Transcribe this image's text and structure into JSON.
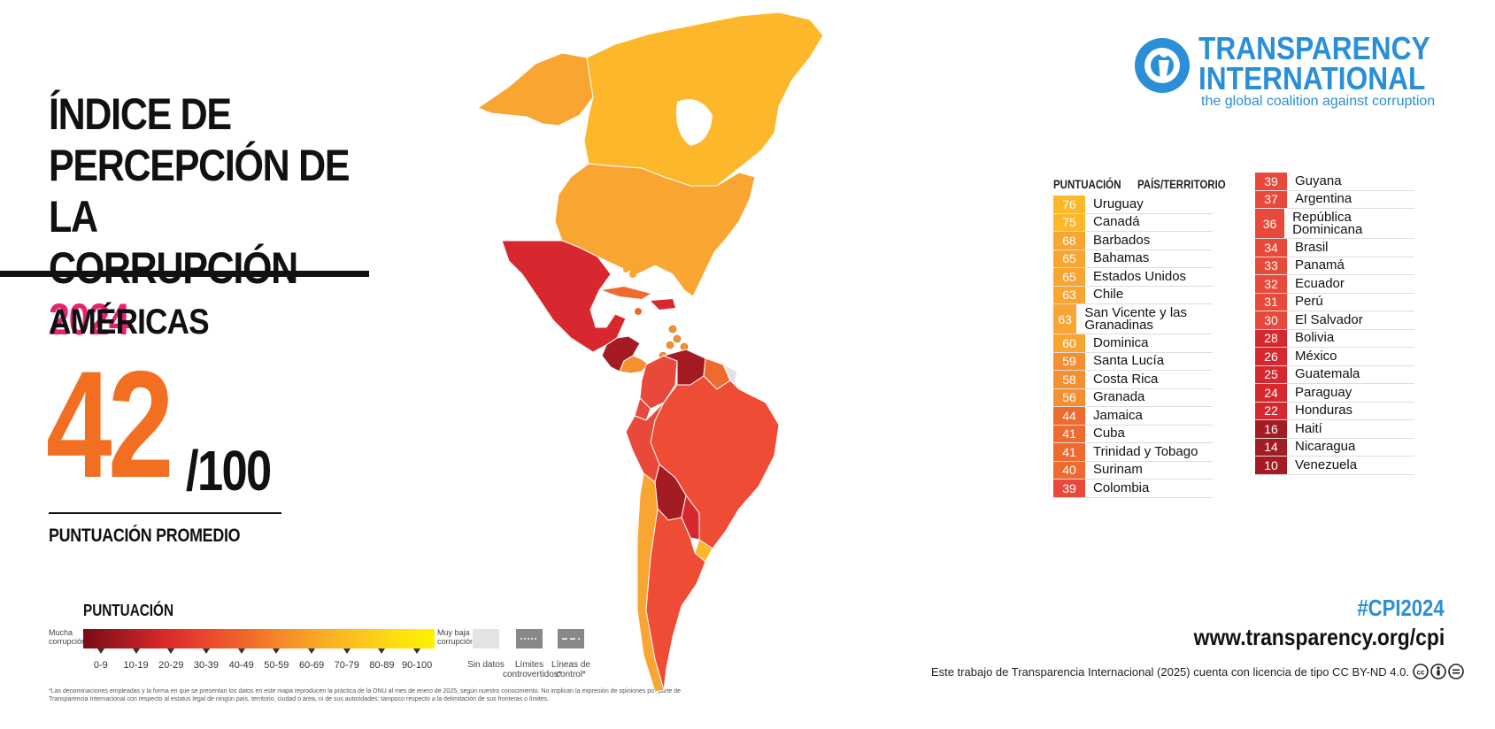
{
  "title": {
    "line1": "ÍNDICE DE",
    "line2": "PERCEPCIÓN DE LA",
    "line3": "CORRUPCIÓN",
    "year": "2024"
  },
  "region": "AMÉRICAS",
  "average": {
    "score": "42",
    "denominator": "/100",
    "label": "PUNTUACIÓN PROMEDIO"
  },
  "legend": {
    "title": "PUNTUACIÓN",
    "low_label": "Mucha corrupción",
    "high_label": "Muy baja corrupción",
    "bins": [
      "0-9",
      "10-19",
      "20-29",
      "30-39",
      "40-49",
      "50-59",
      "60-69",
      "70-79",
      "80-89",
      "90-100"
    ],
    "no_data": "Sin datos",
    "disputed": "Límites controvertidos*",
    "control_lines": "Líneas de control*",
    "colors": [
      "#7b0b13",
      "#a51a20",
      "#d4282a",
      "#e8432d",
      "#ef612b",
      "#f5862a",
      "#f9a825",
      "#fcc21e",
      "#fedd10",
      "#fff200"
    ]
  },
  "footnote": "*Las denominaciones empleadas y la forma en que se presentan los datos en este mapa reproducen la práctica de la ONU al mes de enero de 2025, según nuestro conocimiento. No implican la expresión de opiniones por parte de Transparencia Internacional con respecto al estatus legal de ningún país, territorio, ciudad o área, ni de sus autoridades; tampoco respecto a la delimitación de sus fronteras o límites.",
  "logo": {
    "line1": "TRANSPARENCY",
    "line2": "INTERNATIONAL",
    "tagline": "the global coalition against corruption",
    "color": "#2a8fd6"
  },
  "table": {
    "header_score": "PUNTUACIÓN",
    "header_country": "PAÍS/TERRITORIO",
    "col1": [
      {
        "score": "76",
        "country": "Uruguay",
        "color": "#fcb72a"
      },
      {
        "score": "75",
        "country": "Canadá",
        "color": "#fcb72a"
      },
      {
        "score": "68",
        "country": "Barbados",
        "color": "#f8a532"
      },
      {
        "score": "65",
        "country": "Bahamas",
        "color": "#f8a532"
      },
      {
        "score": "65",
        "country": "Estados Unidos",
        "color": "#f8a532"
      },
      {
        "score": "63",
        "country": "Chile",
        "color": "#f8a532"
      },
      {
        "score": "63",
        "country": "San Vicente y las Granadinas",
        "color": "#f8a532",
        "tall": true
      },
      {
        "score": "60",
        "country": "Dominica",
        "color": "#f8a532"
      },
      {
        "score": "59",
        "country": "Santa Lucía",
        "color": "#f59031"
      },
      {
        "score": "58",
        "country": "Costa Rica",
        "color": "#f59031"
      },
      {
        "score": "56",
        "country": "Granada",
        "color": "#f59031"
      },
      {
        "score": "44",
        "country": "Jamaica",
        "color": "#ef6a2e"
      },
      {
        "score": "41",
        "country": "Cuba",
        "color": "#ef6a2e"
      },
      {
        "score": "41",
        "country": "Trinidad y Tobago",
        "color": "#ef6a2e"
      },
      {
        "score": "40",
        "country": "Surinam",
        "color": "#ef6a2e"
      },
      {
        "score": "39",
        "country": "Colombia",
        "color": "#e8493a"
      }
    ],
    "col2": [
      {
        "score": "39",
        "country": "Guyana",
        "color": "#e8493a"
      },
      {
        "score": "37",
        "country": "Argentina",
        "color": "#e8493a"
      },
      {
        "score": "36",
        "country": "República Dominicana",
        "color": "#e8493a",
        "tall": true
      },
      {
        "score": "34",
        "country": "Brasil",
        "color": "#e8493a"
      },
      {
        "score": "33",
        "country": "Panamá",
        "color": "#e8493a"
      },
      {
        "score": "32",
        "country": "Ecuador",
        "color": "#e8493a"
      },
      {
        "score": "31",
        "country": "Perú",
        "color": "#e8493a"
      },
      {
        "score": "30",
        "country": "El Salvador",
        "color": "#e8493a"
      },
      {
        "score": "28",
        "country": "Bolivia",
        "color": "#d8282f"
      },
      {
        "score": "26",
        "country": "México",
        "color": "#d8282f"
      },
      {
        "score": "25",
        "country": "Guatemala",
        "color": "#d8282f"
      },
      {
        "score": "24",
        "country": "Paraguay",
        "color": "#d8282f"
      },
      {
        "score": "22",
        "country": "Honduras",
        "color": "#d8282f"
      },
      {
        "score": "16",
        "country": "Haití",
        "color": "#a51b24"
      },
      {
        "score": "14",
        "country": "Nicaragua",
        "color": "#a51b24"
      },
      {
        "score": "10",
        "country": "Venezuela",
        "color": "#a51b24"
      }
    ]
  },
  "footer": {
    "hashtag": "#CPI2024",
    "website": "www.transparency.org/cpi",
    "license": "Este trabajo de Transparencia Internacional (2025) cuenta con licencia de tipo CC BY-ND 4.0."
  }
}
